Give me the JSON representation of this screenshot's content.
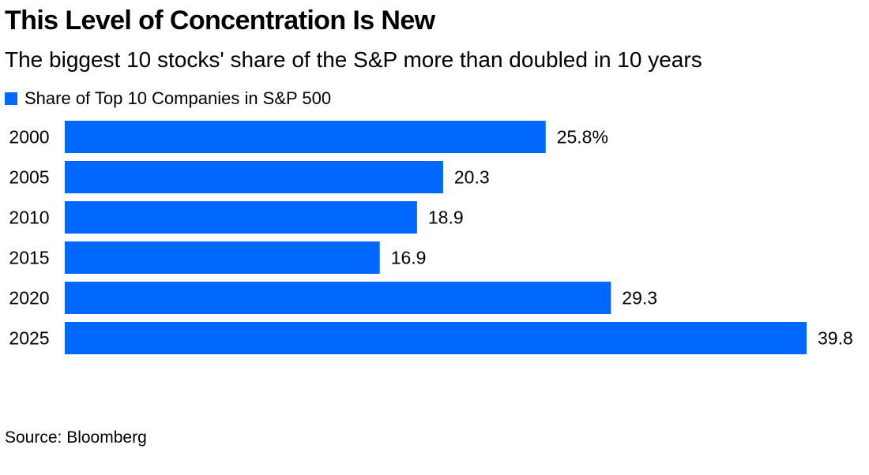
{
  "chart_data": {
    "type": "bar",
    "orientation": "horizontal",
    "title": "This Level of Concentration Is New",
    "subtitle": "The biggest 10 stocks' share of the S&P more than doubled in 10 years",
    "categories": [
      "2000",
      "2005",
      "2010",
      "2015",
      "2020",
      "2025"
    ],
    "series": [
      {
        "name": "Share of Top 10 Companies in S&P 500",
        "values": [
          25.8,
          20.3,
          18.9,
          16.9,
          29.3,
          39.8
        ],
        "value_labels": [
          "25.8%",
          "20.3",
          "18.9",
          "16.9",
          "29.3",
          "39.8"
        ],
        "color": "#0068FF"
      }
    ],
    "xlim": [
      0,
      39.8
    ],
    "grid": false,
    "legend_position": "top-left",
    "source": "Source: Bloomberg"
  }
}
